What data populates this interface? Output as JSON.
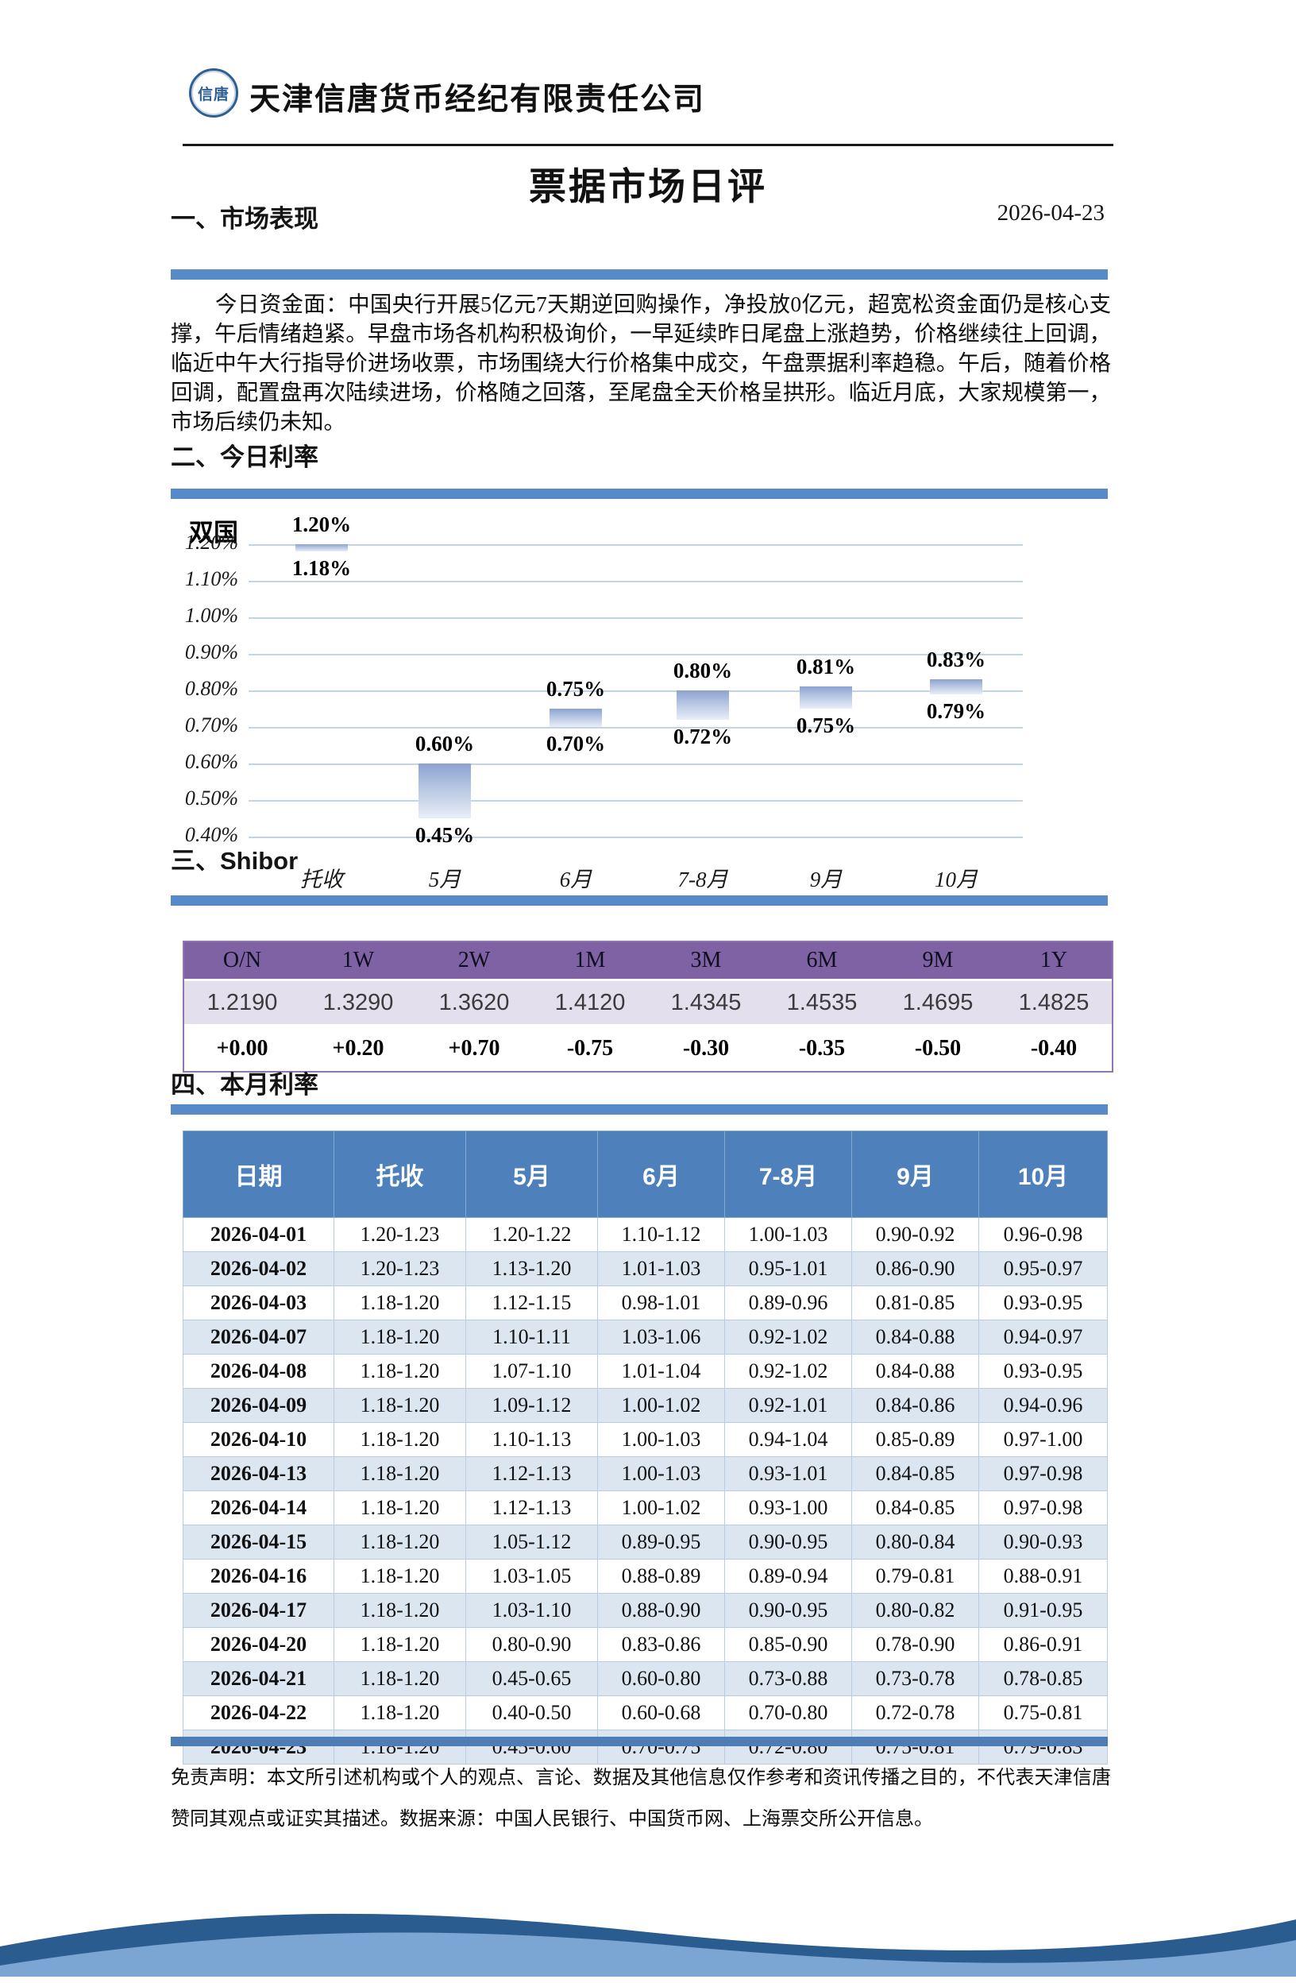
{
  "colors": {
    "accent-blue": "#568BC8",
    "table-header-blue": "#4E80BC",
    "alt-row": "#DCE6F1",
    "shibor-purple": "#7E62A3",
    "shibor-light": "#E4DFEC",
    "bar-gradient-top": "#8CA3D0",
    "bar-gradient-bottom": "#E9EEF8"
  },
  "header": {
    "logo_text": "信唐",
    "company": "天津信唐货币经纪有限责任公司"
  },
  "title": "票据市场日评",
  "date": "2026-04-23",
  "sections": {
    "s1": "一、市场表现",
    "s2": "二、今日利率",
    "s3": "三、Shibor",
    "s4": "四、本月利率"
  },
  "market_commentary": "今日资金面：中国央行开展5亿元7天期逆回购操作，净投放0亿元，超宽松资金面仍是核心支撑，午后情绪趋紧。早盘市场各机构积极询价，一早延续昨日尾盘上涨趋势，价格继续往上回调，临近中午大行指导价进场收票，市场围绕大行价格集中成交，午盘票据利率趋稳。午后，随着价格回调，配置盘再次陆续进场，价格随之回落，至尾盘全天价格呈拱形。临近月底，大家规模第一，市场后续仍未知。",
  "chart_data": {
    "type": "bar",
    "subtype": "floating-range-bars",
    "title": "双国",
    "categories": [
      "托收",
      "5月",
      "6月",
      "7-8月",
      "9月",
      "10月"
    ],
    "bars": [
      {
        "category": "托收",
        "low": 1.18,
        "high": 1.2,
        "low_label": "1.18%",
        "high_label": "1.20%"
      },
      {
        "category": "5月",
        "low": 0.45,
        "high": 0.6,
        "low_label": "0.45%",
        "high_label": "0.60%"
      },
      {
        "category": "6月",
        "low": 0.7,
        "high": 0.75,
        "low_label": "0.70%",
        "high_label": "0.75%"
      },
      {
        "category": "7-8月",
        "low": 0.72,
        "high": 0.8,
        "low_label": "0.72%",
        "high_label": "0.80%"
      },
      {
        "category": "9月",
        "low": 0.75,
        "high": 0.81,
        "low_label": "0.75%",
        "high_label": "0.81%"
      },
      {
        "category": "10月",
        "low": 0.79,
        "high": 0.83,
        "low_label": "0.79%",
        "high_label": "0.83%"
      }
    ],
    "y_ticks": [
      {
        "value": 1.2,
        "label": "1.20%"
      },
      {
        "value": 1.1,
        "label": "1.10%"
      },
      {
        "value": 1.0,
        "label": "1.00%"
      },
      {
        "value": 0.9,
        "label": "0.90%"
      },
      {
        "value": 0.8,
        "label": "0.80%"
      },
      {
        "value": 0.7,
        "label": "0.70%"
      },
      {
        "value": 0.6,
        "label": "0.60%"
      },
      {
        "value": 0.5,
        "label": "0.50%"
      },
      {
        "value": 0.4,
        "label": "0.40%"
      }
    ],
    "ylim": [
      0.4,
      1.2
    ],
    "grid": true,
    "legend": "none",
    "xlabel": "",
    "ylabel": ""
  },
  "shibor_table": {
    "tenors": [
      "O/N",
      "1W",
      "2W",
      "1M",
      "3M",
      "6M",
      "9M",
      "1Y"
    ],
    "rates": [
      "1.2190",
      "1.3290",
      "1.3620",
      "1.4120",
      "1.4345",
      "1.4535",
      "1.4695",
      "1.4825"
    ],
    "changes": [
      "+0.00",
      "+0.20",
      "+0.70",
      "-0.75",
      "-0.30",
      "-0.35",
      "-0.50",
      "-0.40"
    ]
  },
  "monthly_table": {
    "headers": [
      "日期",
      "托收",
      "5月",
      "6月",
      "7-8月",
      "9月",
      "10月"
    ],
    "rows": [
      {
        "date": "2026-04-01",
        "values": [
          "1.20-1.23",
          "1.20-1.22",
          "1.10-1.12",
          "1.00-1.03",
          "0.90-0.92",
          "0.96-0.98"
        ]
      },
      {
        "date": "2026-04-02",
        "values": [
          "1.20-1.23",
          "1.13-1.20",
          "1.01-1.03",
          "0.95-1.01",
          "0.86-0.90",
          "0.95-0.97"
        ]
      },
      {
        "date": "2026-04-03",
        "values": [
          "1.18-1.20",
          "1.12-1.15",
          "0.98-1.01",
          "0.89-0.96",
          "0.81-0.85",
          "0.93-0.95"
        ]
      },
      {
        "date": "2026-04-07",
        "values": [
          "1.18-1.20",
          "1.10-1.11",
          "1.03-1.06",
          "0.92-1.02",
          "0.84-0.88",
          "0.94-0.97"
        ]
      },
      {
        "date": "2026-04-08",
        "values": [
          "1.18-1.20",
          "1.07-1.10",
          "1.01-1.04",
          "0.92-1.02",
          "0.84-0.88",
          "0.93-0.95"
        ]
      },
      {
        "date": "2026-04-09",
        "values": [
          "1.18-1.20",
          "1.09-1.12",
          "1.00-1.02",
          "0.92-1.01",
          "0.84-0.86",
          "0.94-0.96"
        ]
      },
      {
        "date": "2026-04-10",
        "values": [
          "1.18-1.20",
          "1.10-1.13",
          "1.00-1.03",
          "0.94-1.04",
          "0.85-0.89",
          "0.97-1.00"
        ]
      },
      {
        "date": "2026-04-13",
        "values": [
          "1.18-1.20",
          "1.12-1.13",
          "1.00-1.03",
          "0.93-1.01",
          "0.84-0.85",
          "0.97-0.98"
        ]
      },
      {
        "date": "2026-04-14",
        "values": [
          "1.18-1.20",
          "1.12-1.13",
          "1.00-1.02",
          "0.93-1.00",
          "0.84-0.85",
          "0.97-0.98"
        ]
      },
      {
        "date": "2026-04-15",
        "values": [
          "1.18-1.20",
          "1.05-1.12",
          "0.89-0.95",
          "0.90-0.95",
          "0.80-0.84",
          "0.90-0.93"
        ]
      },
      {
        "date": "2026-04-16",
        "values": [
          "1.18-1.20",
          "1.03-1.05",
          "0.88-0.89",
          "0.89-0.94",
          "0.79-0.81",
          "0.88-0.91"
        ]
      },
      {
        "date": "2026-04-17",
        "values": [
          "1.18-1.20",
          "1.03-1.10",
          "0.88-0.90",
          "0.90-0.95",
          "0.80-0.82",
          "0.91-0.95"
        ]
      },
      {
        "date": "2026-04-20",
        "values": [
          "1.18-1.20",
          "0.80-0.90",
          "0.83-0.86",
          "0.85-0.90",
          "0.78-0.90",
          "0.86-0.91"
        ]
      },
      {
        "date": "2026-04-21",
        "values": [
          "1.18-1.20",
          "0.45-0.65",
          "0.60-0.80",
          "0.73-0.88",
          "0.73-0.78",
          "0.78-0.85"
        ]
      },
      {
        "date": "2026-04-22",
        "values": [
          "1.18-1.20",
          "0.40-0.50",
          "0.60-0.68",
          "0.70-0.80",
          "0.72-0.78",
          "0.75-0.81"
        ]
      },
      {
        "date": "2026-04-23",
        "values": [
          "1.18-1.20",
          "0.45-0.60",
          "0.70-0.75",
          "0.72-0.80",
          "0.75-0.81",
          "0.79-0.83"
        ]
      }
    ]
  },
  "disclaimer": "免责声明：本文所引述机构或个人的观点、言论、数据及其他信息仅作参考和资讯传播之目的，不代表天津信唐赞同其观点或证实其描述。数据来源：中国人民银行、中国货币网、上海票交所公开信息。"
}
